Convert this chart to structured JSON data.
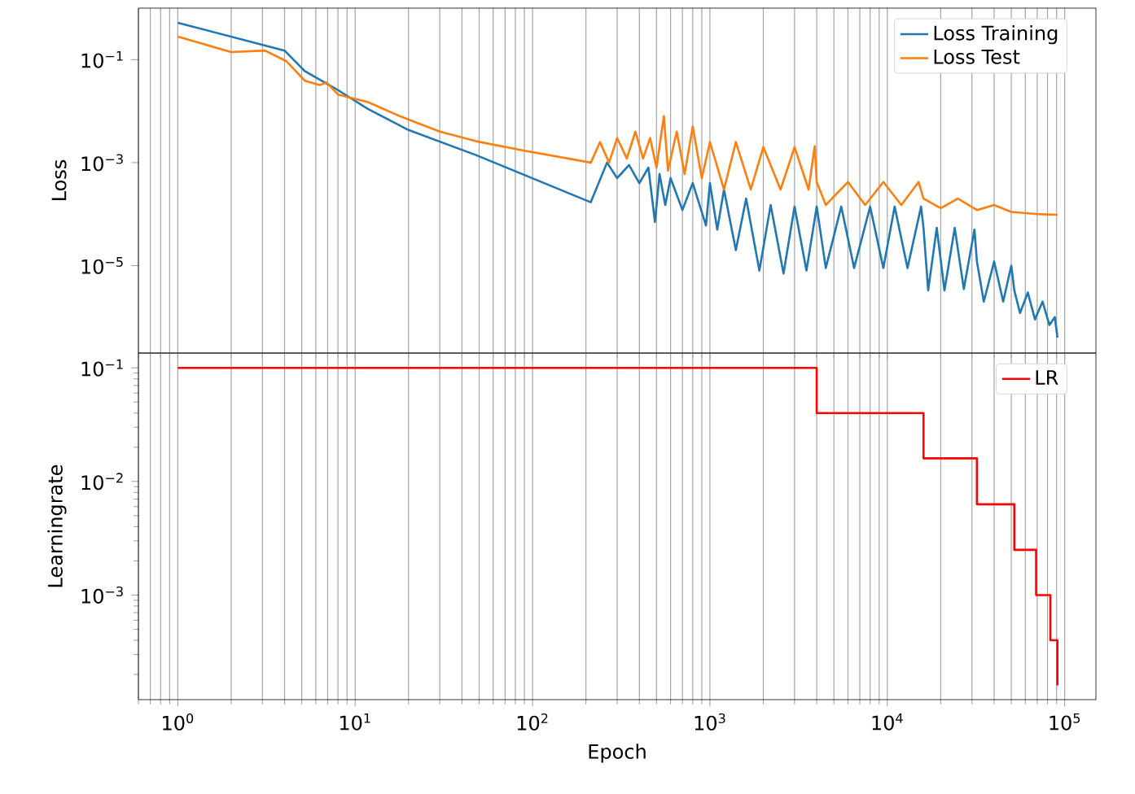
{
  "chart_data": [
    {
      "type": "line",
      "ylabel": "Loss",
      "log": "xy",
      "grid": "x",
      "legend": "top right",
      "tick_labels": "y",
      "xlim": [
        0.6,
        150000
      ],
      "ylim": [
        2e-07,
        1
      ],
      "xticks": [
        {
          "value": 1,
          "label": null
        },
        {
          "value": 10,
          "label": null
        },
        {
          "value": 100,
          "label": null
        },
        {
          "value": 1000,
          "label": null
        },
        {
          "value": 10000,
          "label": null
        },
        {
          "value": 100000,
          "label": null
        }
      ],
      "yticks": [
        {
          "value": 0.1,
          "label": "10$^{−1}$"
        },
        {
          "value": 0.001,
          "label": "10$^{−3}$"
        },
        {
          "value": 1e-05,
          "label": "10$^{−5}$"
        }
      ],
      "series": [
        {
          "name": "Loss Training",
          "color": "#1f77b4",
          "x": [
            1,
            4,
            5.2,
            7.8,
            11.8,
            20,
            48,
            213,
            263,
            300,
            350,
            400,
            450,
            490,
            520,
            560,
            600,
            700,
            800,
            950,
            1000,
            1100,
            1200,
            1400,
            1600,
            1900,
            2200,
            2600,
            3000,
            3500,
            4000,
            4500,
            5500,
            6500,
            8000,
            9500,
            11000,
            13000,
            15500,
            16000,
            17000,
            19000,
            21000,
            24000,
            27000,
            31000,
            32000,
            35000,
            40000,
            45000,
            50000,
            52000,
            56000,
            62000,
            68000,
            75000,
            82000,
            88000,
            91000
          ],
          "values": [
            0.52,
            0.15,
            0.06,
            0.027,
            0.011,
            0.0043,
            0.0014,
            0.00017,
            0.001,
            0.0005,
            0.0009,
            0.0004,
            0.0008,
            7e-05,
            0.0006,
            0.00015,
            0.0005,
            0.00012,
            0.0004,
            6e-05,
            0.0004,
            5e-05,
            0.0003,
            2e-05,
            0.0002,
            8e-06,
            0.00015,
            7e-06,
            0.00014,
            8e-06,
            0.00014,
            9e-06,
            0.00014,
            9e-06,
            0.00014,
            9e-06,
            0.00014,
            9e-06,
            0.00014,
            5.4e-05,
            3.3e-06,
            5.4e-05,
            3.3e-06,
            5.4e-05,
            3.5e-06,
            5e-05,
            1.2e-05,
            2e-06,
            1.2e-05,
            2e-06,
            1e-05,
            3.3e-06,
            1.2e-06,
            3e-06,
            9e-07,
            2e-06,
            7e-07,
            1e-06,
            4e-07
          ]
        },
        {
          "name": "Loss Test",
          "color": "#ff7f0e",
          "x": [
            1,
            2,
            3.1,
            4.1,
            5.2,
            6.3,
            6.9,
            8,
            11.8,
            18,
            30,
            48,
            90,
            213,
            240,
            270,
            300,
            340,
            380,
            420,
            460,
            500,
            550,
            580,
            650,
            720,
            800,
            900,
            1000,
            1200,
            1400,
            1700,
            2000,
            2500,
            3000,
            3600,
            3900,
            4000,
            4500,
            6000,
            7500,
            9500,
            12000,
            15000,
            16000,
            20000,
            25000,
            32000,
            40000,
            50000,
            70000,
            91000
          ],
          "values": [
            0.28,
            0.14,
            0.15,
            0.093,
            0.039,
            0.032,
            0.036,
            0.021,
            0.015,
            0.0079,
            0.004,
            0.0026,
            0.0017,
            0.001,
            0.0025,
            0.001,
            0.003,
            0.0012,
            0.004,
            0.0012,
            0.003,
            0.0008,
            0.008,
            0.0007,
            0.004,
            0.0006,
            0.005,
            0.0005,
            0.0025,
            0.0003,
            0.0025,
            0.0003,
            0.002,
            0.0003,
            0.002,
            0.0003,
            0.0021,
            0.00042,
            0.00015,
            0.00042,
            0.00015,
            0.00042,
            0.00015,
            0.00042,
            0.0002,
            0.00013,
            0.0002,
            0.00012,
            0.00015,
            0.00011,
            0.0001,
            9.7e-05
          ]
        }
      ]
    },
    {
      "type": "step",
      "xlabel": "Epoch",
      "ylabel": "Learningrate",
      "log": "xy",
      "grid": "x",
      "legend": "top right",
      "xlim": [
        0.6,
        150000
      ],
      "ylim": [
        0.00012,
        0.135
      ],
      "xticks": [
        {
          "value": 1,
          "label": "10$^{0}$"
        },
        {
          "value": 10,
          "label": "10$^{1}$"
        },
        {
          "value": 100,
          "label": "10$^{2}$"
        },
        {
          "value": 1000,
          "label": "10$^{3}$"
        },
        {
          "value": 10000,
          "label": "10$^{4}$"
        },
        {
          "value": 100000,
          "label": "10$^{5}$"
        }
      ],
      "yticks": [
        {
          "value": 0.1,
          "label": "10$^{−1}$"
        },
        {
          "value": 0.01,
          "label": "10$^{−2}$"
        },
        {
          "value": 0.001,
          "label": "10$^{−3}$"
        }
      ],
      "series": [
        {
          "name": "LR",
          "color": "#ff0000",
          "x": [
            1,
            4000,
            16000,
            32000,
            52000,
            69000,
            83000,
            91000
          ],
          "values": [
            0.1,
            0.04,
            0.016,
            0.0063,
            0.0025,
            0.001,
            0.0004,
            0.00016
          ]
        }
      ]
    }
  ]
}
